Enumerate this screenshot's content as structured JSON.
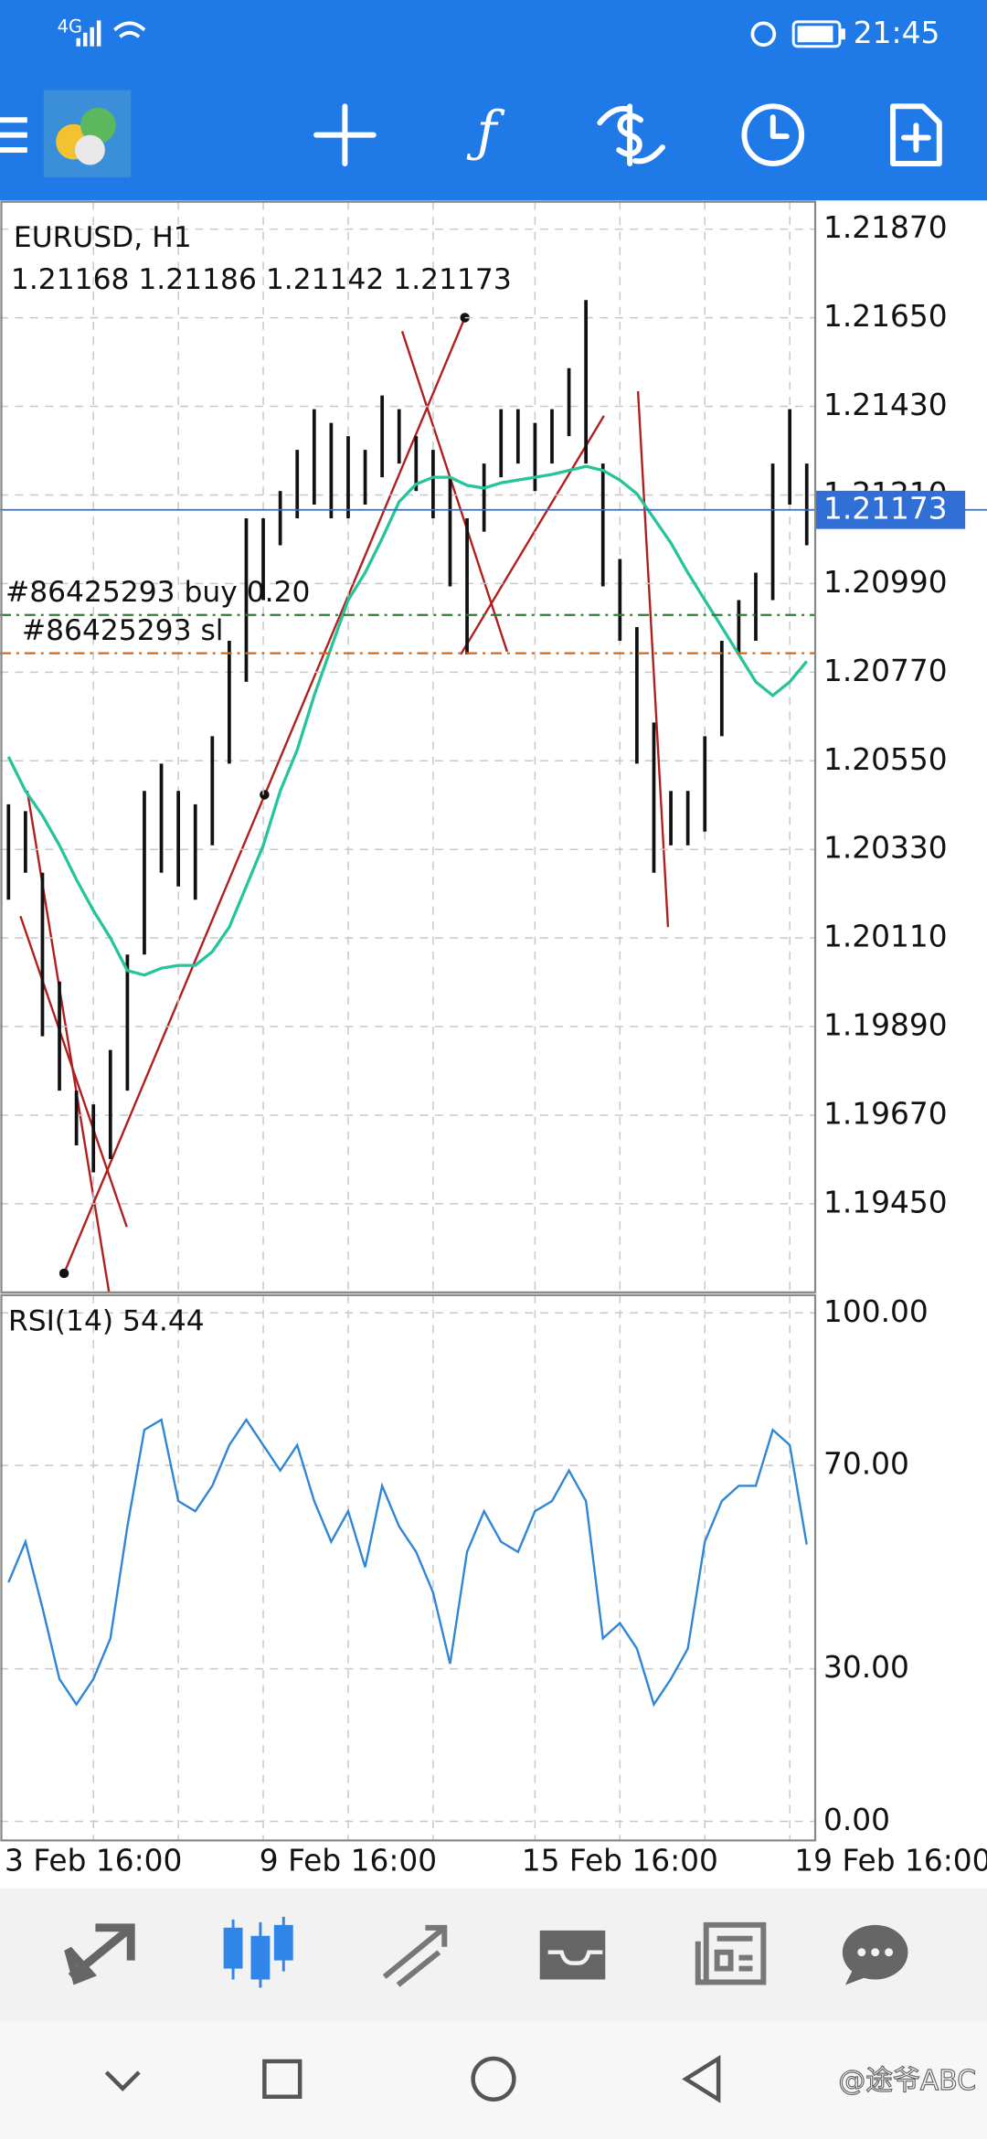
{
  "status_bar": {
    "network": "4G",
    "time": "21:45"
  },
  "chart_data": [
    {
      "type": "range-bar",
      "title": "EURUSD, H1",
      "subtitle": "1.21168 1.21186 1.21142 1.21173",
      "categories": [
        null,
        null,
        null,
        null,
        null,
        "3 Feb 16:00",
        null,
        null,
        null,
        null,
        null,
        null,
        null,
        null,
        null,
        null,
        null,
        null,
        null,
        null,
        "9 Feb 16:00",
        null,
        null,
        null,
        null,
        null,
        null,
        null,
        null,
        null,
        null,
        null,
        null,
        null,
        null,
        null,
        "15 Feb 16:00",
        null,
        null,
        null,
        null,
        null,
        null,
        null,
        null,
        null,
        null,
        "19 Feb 16:00"
      ],
      "high": [
        1.20442,
        1.20425,
        1.20272,
        1.20002,
        1.19731,
        1.19697,
        1.19832,
        1.20069,
        1.20475,
        1.20543,
        1.20475,
        1.20442,
        1.20611,
        1.20848,
        1.21152,
        1.21152,
        1.2122,
        1.21322,
        1.21423,
        1.21389,
        1.21356,
        1.21322,
        1.21457,
        1.21423,
        1.21356,
        1.21322,
        1.21254,
        1.21152,
        1.21288,
        1.21423,
        1.21423,
        1.21389,
        1.21423,
        1.21525,
        1.21694,
        1.21288,
        1.21051,
        1.20882,
        1.20645,
        1.20475,
        1.20475,
        1.20611,
        1.20848,
        1.20949,
        1.21017,
        1.21288,
        1.21423,
        1.21288
      ],
      "low": [
        1.20205,
        1.20272,
        1.19866,
        1.19731,
        1.19595,
        1.19528,
        1.19561,
        1.19731,
        1.20069,
        1.20272,
        1.20238,
        1.20205,
        1.2034,
        1.20543,
        1.20746,
        1.20949,
        1.21085,
        1.21152,
        1.21186,
        1.21152,
        1.21152,
        1.21186,
        1.21254,
        1.21288,
        1.2122,
        1.21152,
        1.20983,
        1.20814,
        1.21119,
        1.21254,
        1.21288,
        1.2122,
        1.21288,
        1.21356,
        1.21288,
        1.20983,
        1.20848,
        1.20543,
        1.20272,
        1.2034,
        1.2034,
        1.20374,
        1.20611,
        1.20814,
        1.20848,
        1.20949,
        1.21186,
        1.21085
      ],
      "color": "#111111",
      "ma": {
        "color": "#26c49a",
        "values": [
          1.2056,
          1.20475,
          1.20414,
          1.2034,
          1.20255,
          1.20178,
          1.2011,
          1.20029,
          1.20018,
          1.20035,
          1.20042,
          1.20042,
          1.20076,
          1.20137,
          1.20238,
          1.2034,
          1.20475,
          1.20577,
          1.20712,
          1.20831,
          1.20949,
          1.21017,
          1.21102,
          1.21193,
          1.21237,
          1.21254,
          1.21254,
          1.21234,
          1.21227,
          1.2124,
          1.21247,
          1.21254,
          1.21261,
          1.21271,
          1.21281,
          1.21271,
          1.21247,
          1.21213,
          1.21152,
          1.21091,
          1.21017,
          1.20949,
          1.20882,
          1.20814,
          1.20746,
          1.20712,
          1.20746,
          1.20797
        ]
      },
      "ylim": [
        1.1923,
        1.21938
      ],
      "yticks": [
        {
          "value": 1.2187,
          "label": "1.21870"
        },
        {
          "value": 1.2165,
          "label": "1.21650"
        },
        {
          "value": 1.2143,
          "label": "1.21430"
        },
        {
          "value": 1.2121,
          "label": "1.21210"
        },
        {
          "value": 1.2099,
          "label": "1.20990"
        },
        {
          "value": 1.2077,
          "label": "1.20770"
        },
        {
          "value": 1.2055,
          "label": "1.20550"
        },
        {
          "value": 1.2033,
          "label": "1.20330"
        },
        {
          "value": 1.2011,
          "label": "1.20110"
        },
        {
          "value": 1.1989,
          "label": "1.19890"
        },
        {
          "value": 1.1967,
          "label": "1.19670"
        },
        {
          "value": 1.1945,
          "label": "1.19450"
        }
      ],
      "grid": true,
      "price_line": {
        "value": 1.21173,
        "color": "#2f6fd6"
      },
      "orders": [
        {
          "label": "#86425293 buy 0.20",
          "value": 1.20912,
          "color": "#2e7d32"
        },
        {
          "label": "#86425293 sl",
          "value": 1.20817,
          "color": "#d2691e"
        }
      ]
    },
    {
      "type": "line",
      "title": "RSI(14) 54.44",
      "color": "#2f86d6",
      "values": [
        47,
        55,
        42,
        28,
        23,
        28,
        36,
        58,
        77,
        79,
        63,
        61,
        66,
        74,
        79,
        74,
        69,
        74,
        63,
        55,
        61,
        50,
        66,
        58,
        53,
        45,
        31,
        53,
        61,
        55,
        53,
        61,
        63,
        69,
        63,
        36,
        39,
        34,
        23,
        28,
        34,
        55,
        63,
        66,
        66,
        77,
        74,
        54.44
      ],
      "ylim": [
        -3.75,
        103.5
      ],
      "yticks": [
        {
          "value": 100,
          "label": "100.00"
        },
        {
          "value": 70,
          "label": "70.00"
        },
        {
          "value": 30,
          "label": "30.00"
        },
        {
          "value": 0,
          "label": "0.00"
        }
      ],
      "grid": true
    }
  ],
  "watermark": "@途爷ABC"
}
